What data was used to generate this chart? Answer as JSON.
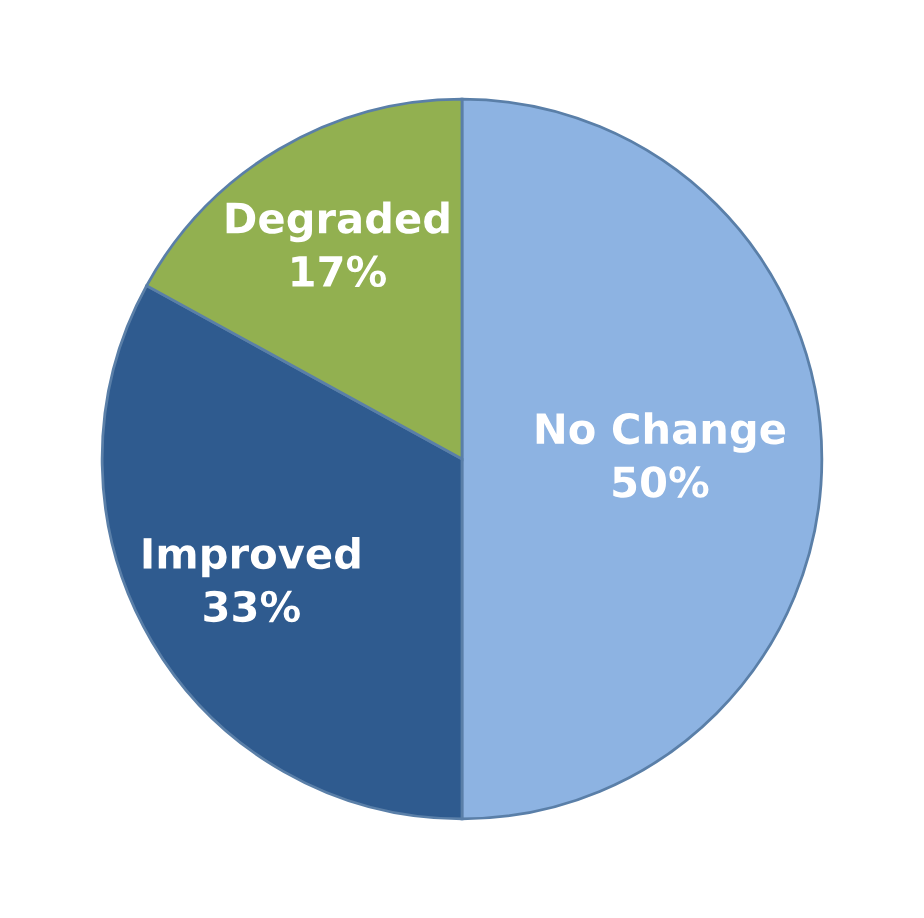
{
  "chart_data": {
    "type": "pie",
    "categories": [
      "No Change",
      "Improved",
      "Degraded"
    ],
    "values": [
      50,
      33,
      17
    ],
    "value_labels": [
      "50%",
      "33%",
      "17%"
    ],
    "colors": [
      "#8db3e2",
      "#2f5b8f",
      "#92b050"
    ]
  }
}
